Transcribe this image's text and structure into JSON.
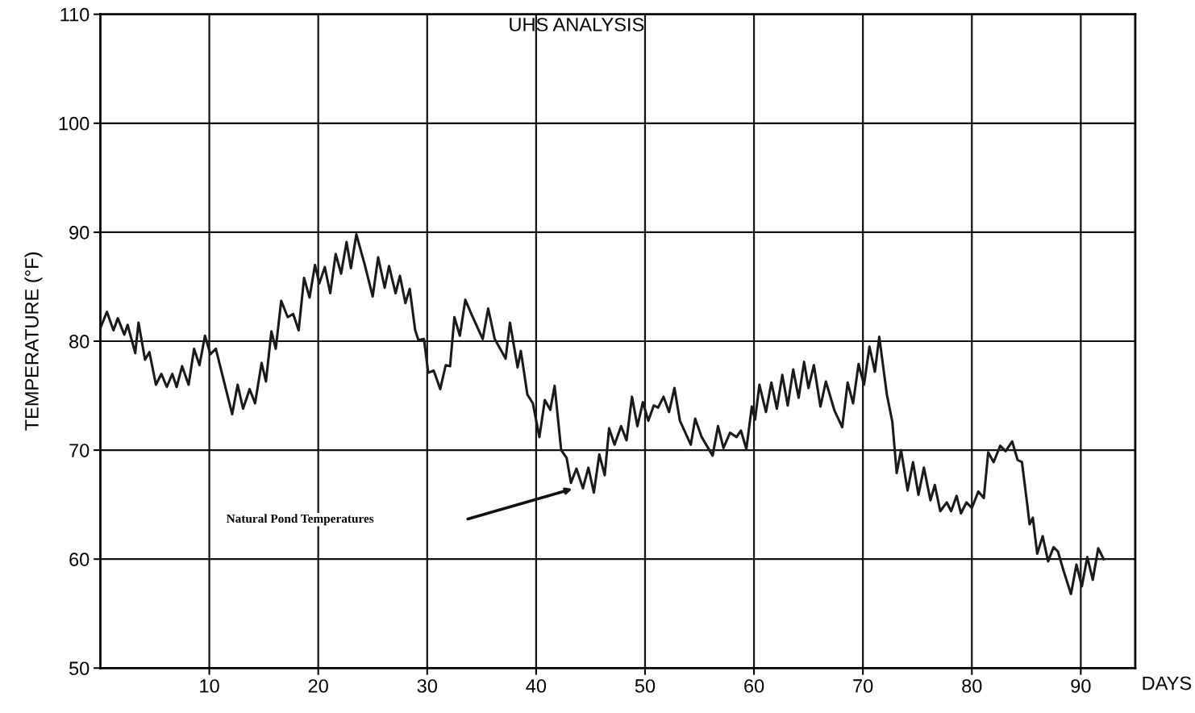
{
  "chart_data": {
    "type": "line",
    "title": "UHS ANALYSIS",
    "xlabel": "DAYS",
    "ylabel": "TEMPERATURE (°F)",
    "xlim": [
      0,
      95
    ],
    "xticks": [
      10,
      20,
      30,
      40,
      50,
      60,
      70,
      80,
      90
    ],
    "ylim": [
      50,
      110
    ],
    "yticks": [
      50,
      60,
      70,
      80,
      90,
      100,
      110
    ],
    "grid": true,
    "marker": "none",
    "line_style": "solid",
    "annotations": [
      "Natural Pond Temperatures"
    ],
    "series": [
      {
        "color": "#1a1a1a",
        "x": [
          0,
          0.6,
          1.2,
          1.6,
          2.2,
          2.5,
          3.2,
          3.5,
          4.1,
          4.5,
          5.1,
          5.6,
          6.1,
          6.6,
          7.0,
          7.5,
          8.1,
          8.6,
          9.1,
          9.6,
          10.1,
          10.6,
          11.3,
          12.1,
          12.6,
          13.1,
          13.7,
          14.2,
          14.8,
          15.2,
          15.7,
          16.1,
          16.6,
          17.2,
          17.7,
          18.2,
          18.7,
          19.2,
          19.7,
          20.1,
          20.6,
          21.1,
          21.6,
          22.1,
          22.6,
          23.0,
          23.5,
          24.3,
          25.0,
          25.5,
          26.1,
          26.5,
          27.1,
          27.5,
          28.0,
          28.4,
          28.9,
          29.2,
          29.7,
          30.1,
          30.6,
          31.2,
          31.7,
          32.1,
          32.5,
          33.0,
          33.5,
          34.1,
          35.1,
          35.6,
          36.2,
          37.2,
          37.6,
          38.3,
          38.6,
          39.2,
          39.7,
          40.3,
          40.8,
          41.3,
          41.7,
          42.3,
          42.8,
          43.2,
          43.7,
          44.3,
          44.8,
          45.3,
          45.8,
          46.3,
          46.7,
          47.2,
          47.8,
          48.3,
          48.8,
          49.3,
          49.8,
          50.3,
          50.8,
          51.2,
          51.7,
          52.2,
          52.7,
          53.2,
          54.2,
          54.6,
          55.2,
          56.2,
          56.7,
          57.2,
          57.8,
          58.4,
          58.8,
          59.3,
          59.8,
          60.1,
          60.5,
          61.1,
          61.6,
          62.1,
          62.6,
          63.1,
          63.6,
          64.1,
          64.6,
          65.0,
          65.5,
          66.1,
          66.6,
          67.4,
          68.1,
          68.6,
          69.1,
          69.6,
          70.1,
          70.6,
          71.1,
          71.5,
          72.2,
          72.7,
          73.1,
          73.5,
          74.1,
          74.6,
          75.1,
          75.6,
          76.2,
          76.6,
          77.1,
          77.7,
          78.1,
          78.6,
          79.0,
          79.5,
          80.0,
          80.6,
          81.1,
          81.5,
          82.0,
          82.6,
          83.1,
          83.7,
          84.2,
          84.6,
          85.1,
          85.3,
          85.6,
          86.0,
          86.5,
          87.0,
          87.5,
          87.9,
          88.4,
          89.1,
          89.6,
          90.1,
          90.6,
          91.1,
          91.6,
          92.1
        ],
        "values": [
          81.2,
          82.7,
          81,
          82.1,
          80.6,
          81.5,
          78.9,
          81.7,
          78.3,
          79,
          76,
          77,
          75.8,
          77,
          75.8,
          77.7,
          76,
          79.3,
          77.8,
          80.5,
          78.8,
          79.3,
          76.5,
          73.3,
          76,
          73.8,
          75.6,
          74.3,
          78,
          76.3,
          80.9,
          79.3,
          83.7,
          82.2,
          82.5,
          81,
          85.8,
          84,
          87,
          85.3,
          86.8,
          84.4,
          88,
          86.2,
          89.1,
          86.7,
          89.8,
          86.9,
          84.1,
          87.7,
          84.9,
          86.9,
          84.4,
          86,
          83.5,
          84.8,
          81,
          80.1,
          80.2,
          77.1,
          77.3,
          75.6,
          77.8,
          77.7,
          82.2,
          80.5,
          83.8,
          82.4,
          80.2,
          83,
          80.2,
          78.4,
          81.7,
          77.6,
          79.1,
          75.1,
          74.3,
          71.2,
          74.6,
          73.7,
          75.9,
          70,
          69.3,
          67,
          68.3,
          66.5,
          68.4,
          66.1,
          69.6,
          67.7,
          72,
          70.5,
          72.2,
          70.9,
          74.9,
          72.2,
          74.4,
          72.7,
          74.1,
          73.9,
          74.9,
          73.5,
          75.7,
          72.7,
          70.5,
          72.9,
          71.2,
          69.5,
          72.2,
          70.2,
          71.6,
          71.2,
          71.8,
          70.1,
          74,
          72.8,
          76,
          73.5,
          76.2,
          73.8,
          76.9,
          74.1,
          77.4,
          74.8,
          78.1,
          75.7,
          77.8,
          74,
          76.3,
          73.6,
          72.1,
          76.2,
          74.3,
          77.9,
          76,
          79.5,
          77.2,
          80.4,
          75.1,
          72.6,
          67.9,
          70,
          66.3,
          68.9,
          65.9,
          68.4,
          65.4,
          66.8,
          64.4,
          65.2,
          64.4,
          65.8,
          64.2,
          65.2,
          64.7,
          66.2,
          65.6,
          69.8,
          68.9,
          70.4,
          69.9,
          70.8,
          69.1,
          68.9,
          64.9,
          63.2,
          63.8,
          60.5,
          62.1,
          59.8,
          61.1,
          60.7,
          59,
          56.8,
          59.5,
          57.5,
          60.2,
          58.1,
          61,
          60
        ]
      }
    ]
  }
}
